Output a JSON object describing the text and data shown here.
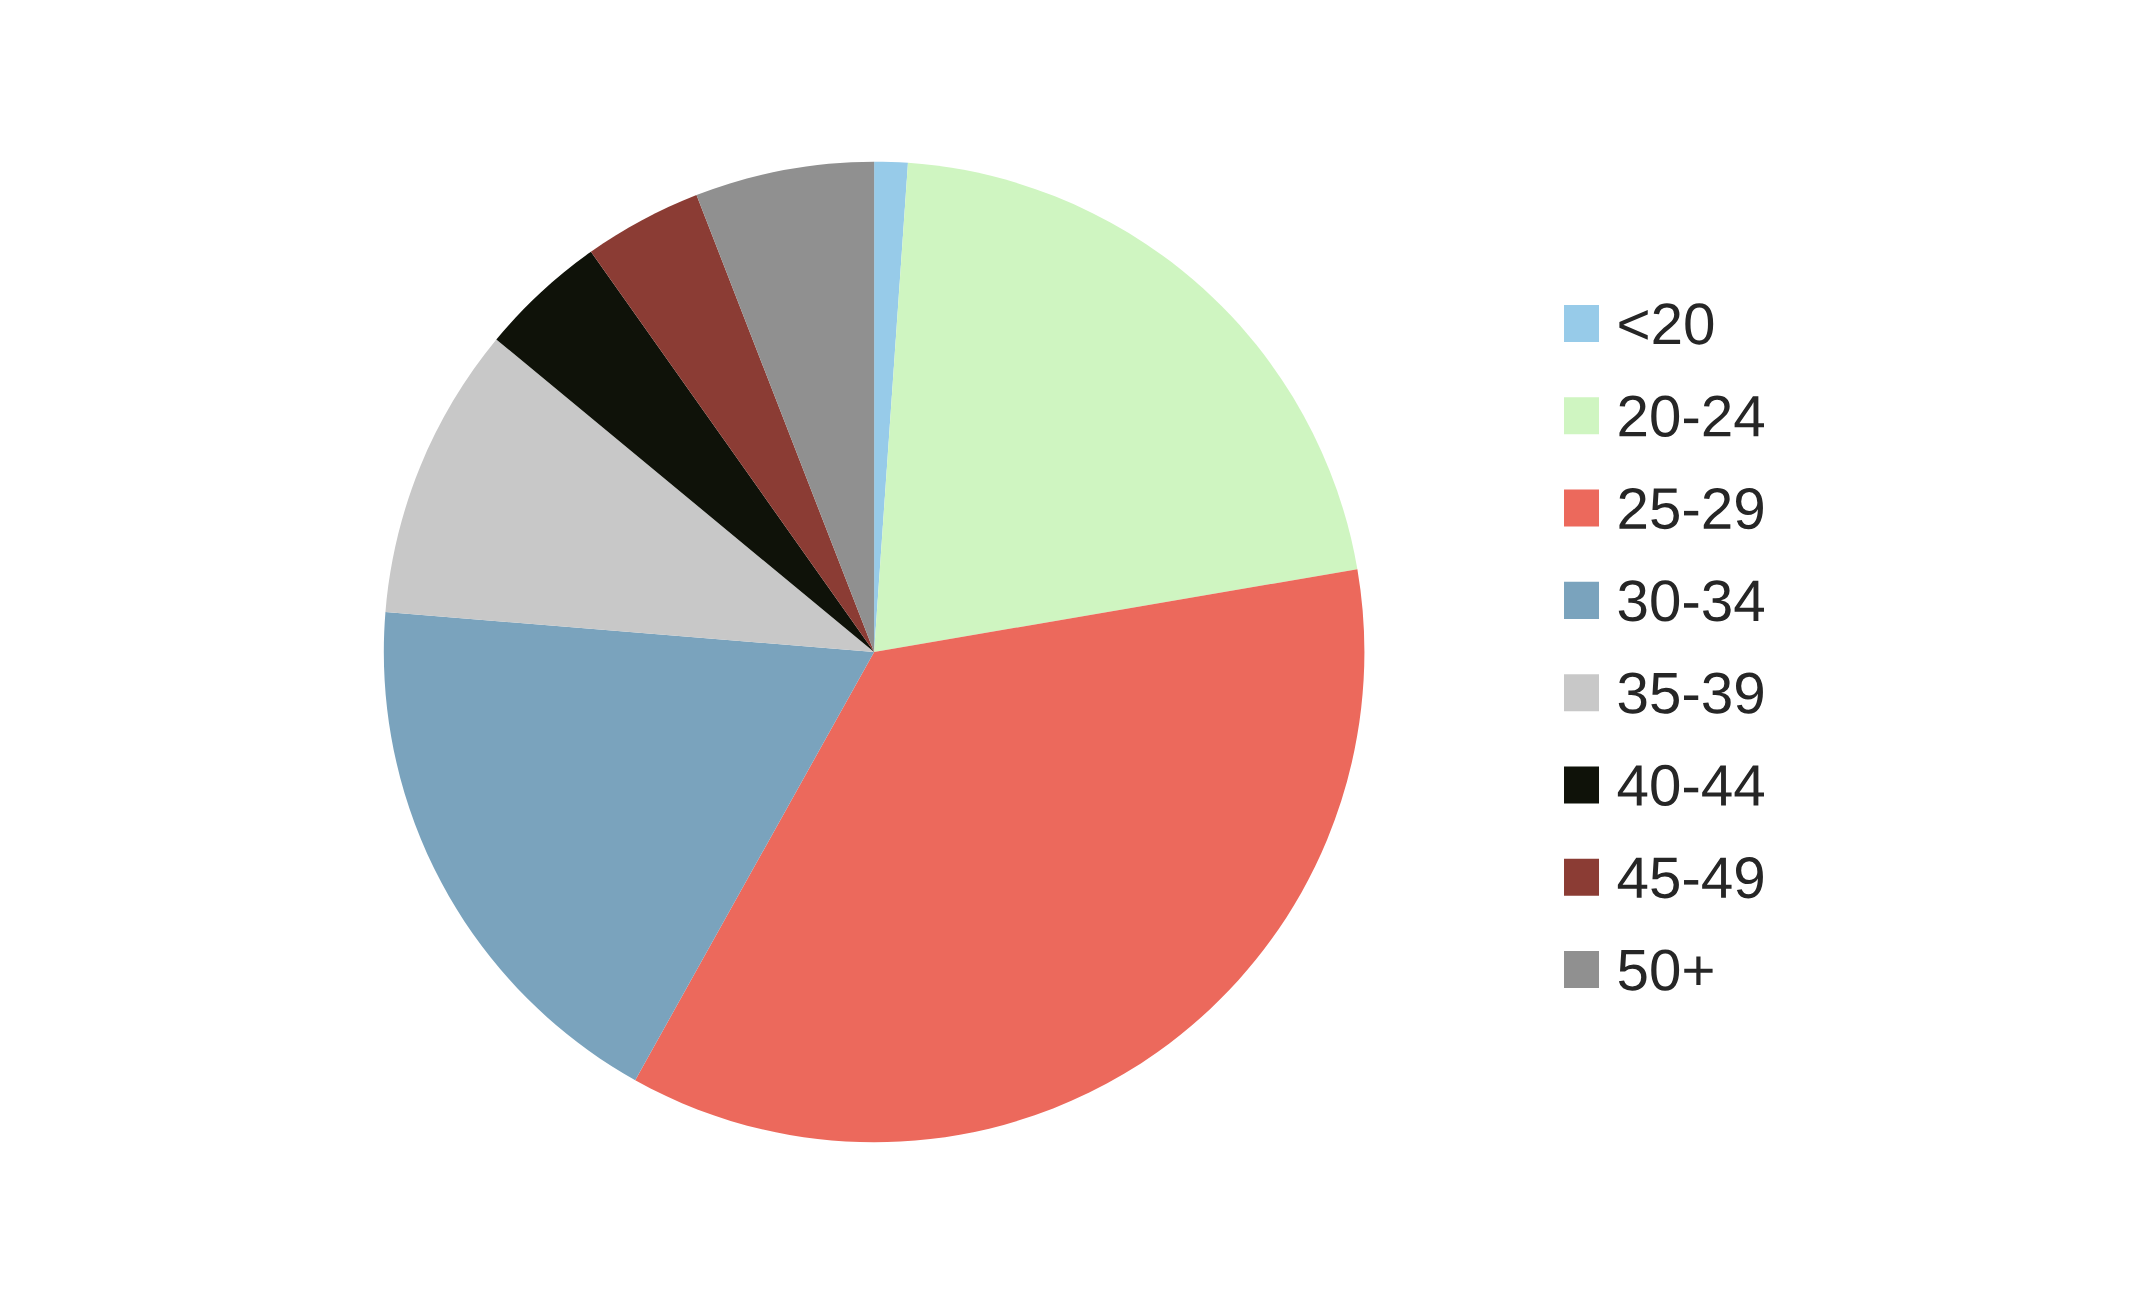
{
  "chart_data": {
    "type": "pie",
    "categories": [
      "<20",
      "20-24",
      "25-29",
      "30-34",
      "35-39",
      "40-44",
      "45-49",
      "50+"
    ],
    "values": [
      1.1,
      21.2,
      35.8,
      18.2,
      9.7,
      4.2,
      3.9,
      5.9
    ],
    "colors": [
      "#97cbe9",
      "#cff5c1",
      "#ec695c",
      "#7aa3bd",
      "#c8c8c8",
      "#0f1209",
      "#8b3c34",
      "#909090"
    ],
    "legend": "right"
  }
}
